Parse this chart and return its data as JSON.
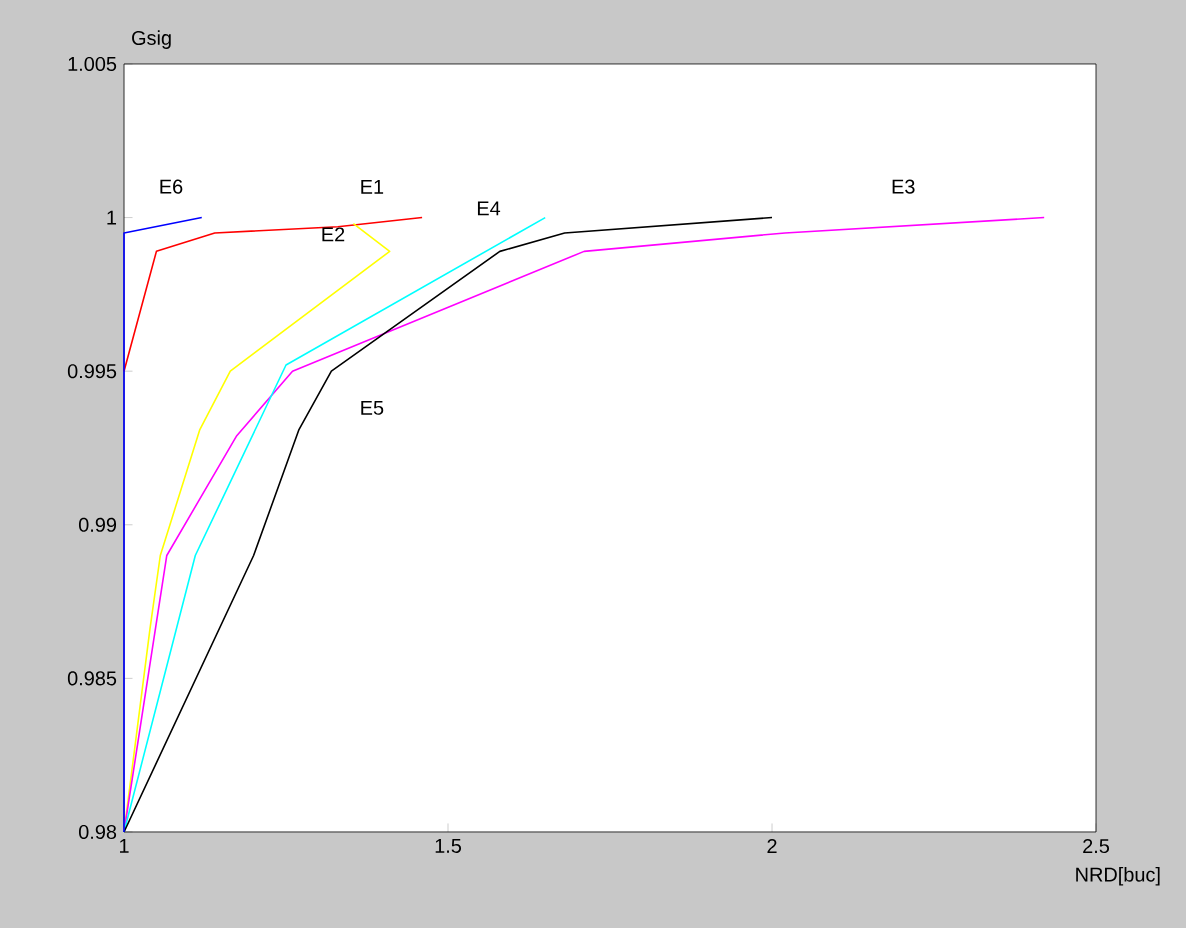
{
  "chart_data": {
    "type": "line",
    "xlabel": "NRD[buc]",
    "ylabel": "Gsig",
    "xlim": [
      1,
      2.5
    ],
    "ylim": [
      0.98,
      1.005
    ],
    "xticks": [
      1,
      1.5,
      2,
      2.5
    ],
    "yticks": [
      0.98,
      0.985,
      0.99,
      0.995,
      1,
      1.005
    ],
    "series": [
      {
        "name": "E1",
        "color": "#ff0000",
        "x": [
          1,
          1.05,
          1.14,
          1.33,
          1.46
        ],
        "values": [
          0.995,
          0.9989,
          0.9995,
          0.9997,
          1.0
        ]
      },
      {
        "name": "E2",
        "color": "#ffff00",
        "x": [
          1,
          1.04,
          1.056,
          1.117,
          1.164,
          1.41,
          1.354
        ],
        "values": [
          0.98,
          0.9866,
          0.989,
          0.9931,
          0.995,
          0.9989,
          0.9998
        ]
      },
      {
        "name": "E3",
        "color": "#ff00ff",
        "x": [
          1,
          1.066,
          1.174,
          1.26,
          1.71,
          2.02,
          2.42
        ],
        "values": [
          0.98,
          0.989,
          0.9929,
          0.995,
          0.9989,
          0.9995,
          1.0
        ]
      },
      {
        "name": "E4",
        "color": "#00ffff",
        "x": [
          1,
          1.11,
          1.25,
          1.65
        ],
        "values": [
          0.98,
          0.989,
          0.9952,
          1.0
        ]
      },
      {
        "name": "E5",
        "color": "#000000",
        "x": [
          1,
          1.2,
          1.27,
          1.32,
          1.58,
          1.68,
          2.0
        ],
        "values": [
          0.98,
          0.989,
          0.9931,
          0.995,
          0.9989,
          0.9995,
          1.0
        ]
      },
      {
        "name": "E6",
        "color": "#0000ff",
        "x": [
          1,
          1,
          1.12
        ],
        "values": [
          0.98,
          0.9995,
          1.0
        ]
      }
    ]
  }
}
